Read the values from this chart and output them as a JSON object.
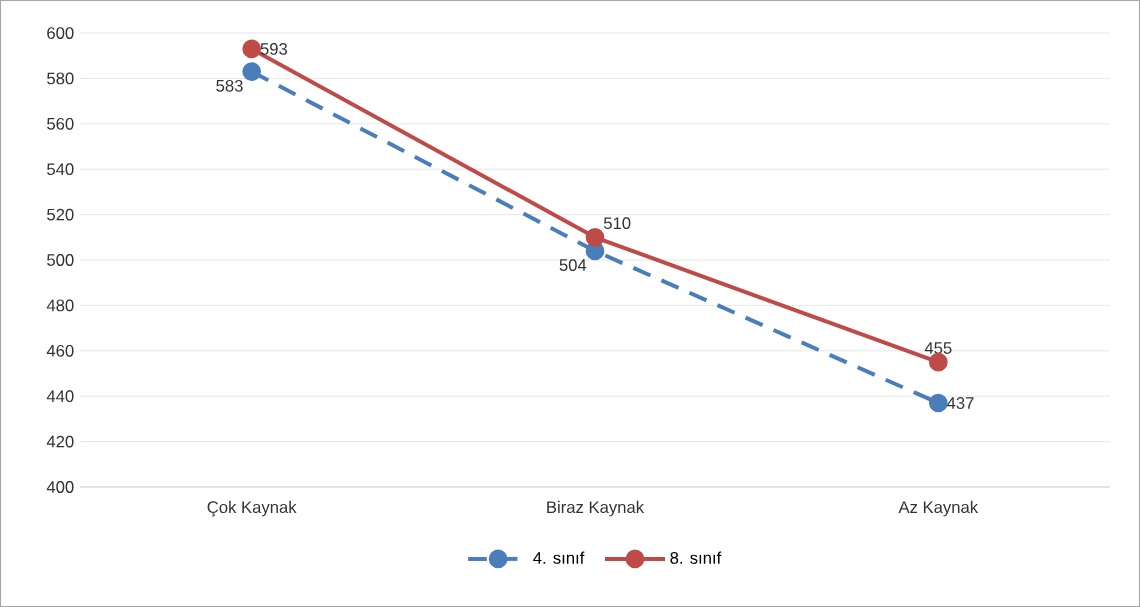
{
  "chart_data": {
    "type": "line",
    "categories": [
      "Çok Kaynak",
      "Biraz Kaynak",
      "Az Kaynak"
    ],
    "series": [
      {
        "name": "4. sınıf",
        "color": "#4a7ebb",
        "values": [
          583,
          504,
          437
        ],
        "line_style": "dashed"
      },
      {
        "name": "8. sınıf",
        "color": "#be4b48",
        "values": [
          593,
          510,
          455
        ],
        "line_style": "solid"
      }
    ],
    "ylim": [
      400,
      600
    ],
    "yticks": [
      400,
      420,
      440,
      460,
      480,
      500,
      520,
      540,
      560,
      580,
      600
    ],
    "grid": "y",
    "legend": "bottom",
    "marker": "circle",
    "data_labels": true
  }
}
